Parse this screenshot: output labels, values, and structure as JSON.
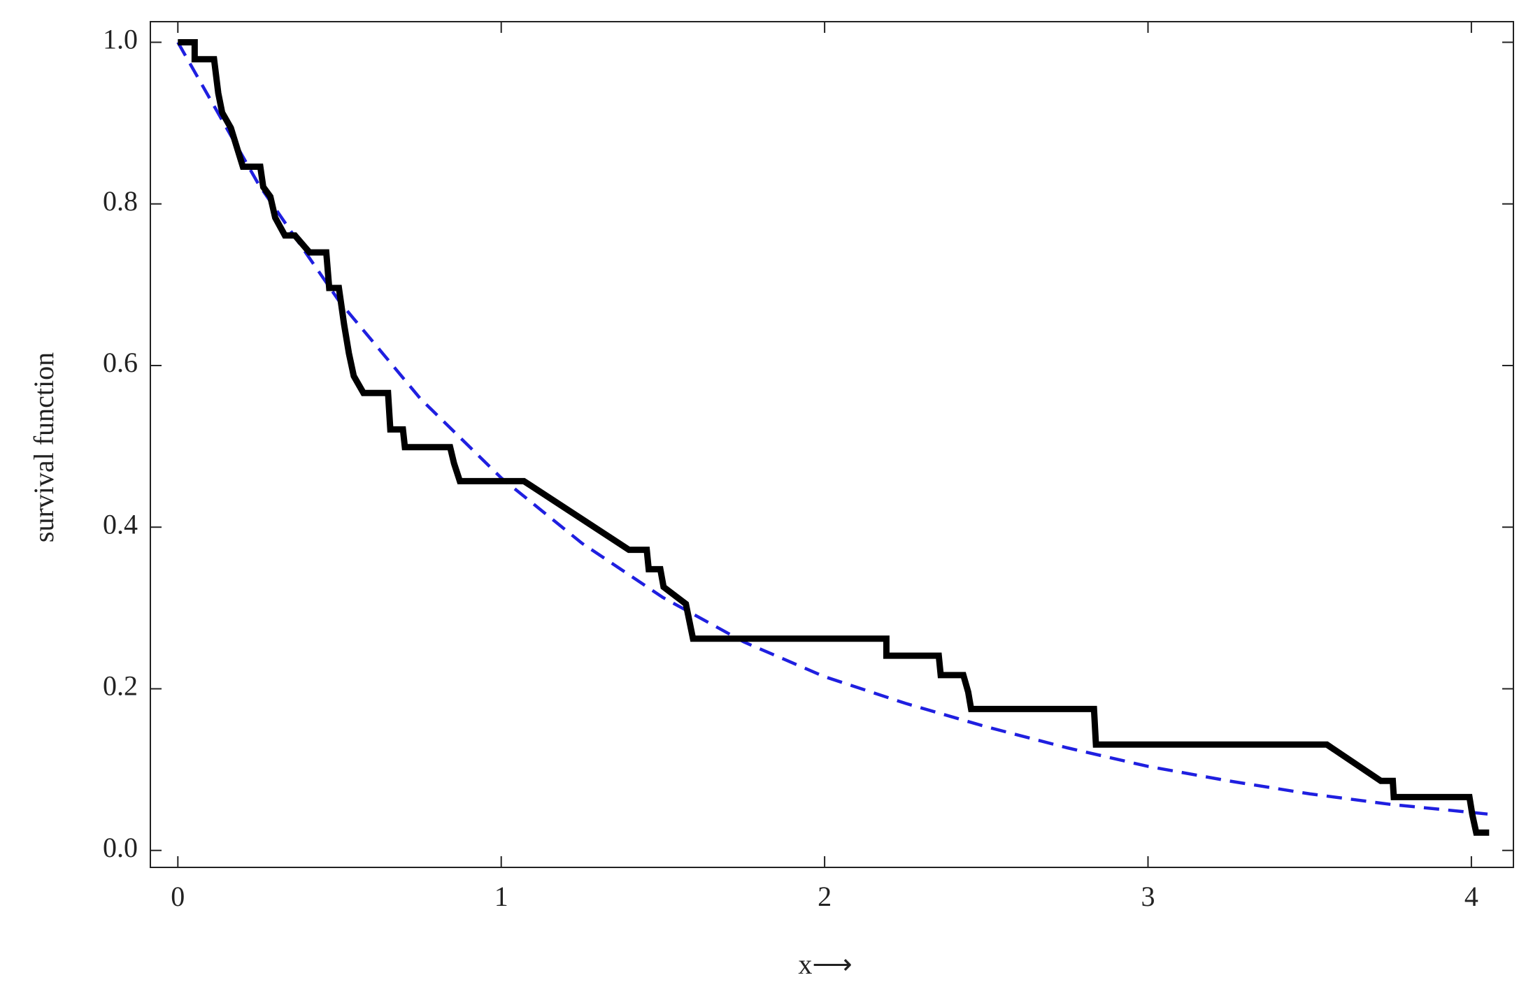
{
  "chart_data": {
    "type": "line",
    "xlabel": "x⟶",
    "ylabel": "survival function",
    "xlim": [
      -0.085,
      4.13
    ],
    "ylim": [
      -0.021,
      1.0255
    ],
    "xticks": [
      0,
      1,
      2,
      3,
      4
    ],
    "yticks": [
      {
        "value": 0,
        "label": "0.0"
      },
      {
        "value": 0.2,
        "label": "0.2"
      },
      {
        "value": 0.4,
        "label": "0.4"
      },
      {
        "value": 0.6,
        "label": "0.6"
      },
      {
        "value": 0.8,
        "label": "0.8"
      },
      {
        "value": 1,
        "label": "1.0"
      }
    ],
    "grid": false,
    "series": [
      {
        "color": "#000000",
        "dashed": false,
        "x": [
          0,
          0.052,
          0.052,
          0.112,
          0.125,
          0.137,
          0.164,
          0.201,
          0.255,
          0.264,
          0.286,
          0.301,
          0.331,
          0.362,
          0.407,
          0.459,
          0.468,
          0.498,
          0.514,
          0.529,
          0.544,
          0.574,
          0.65,
          0.657,
          0.696,
          0.702,
          0.842,
          0.854,
          0.872,
          1.07,
          1.395,
          1.45,
          1.456,
          1.492,
          1.502,
          1.571,
          1.593,
          2.191,
          2.191,
          2.353,
          2.359,
          2.429,
          2.444,
          2.453,
          2.833,
          2.839,
          3.553,
          3.72,
          3.757,
          3.76,
          3.994,
          4.003,
          4.015,
          4.055
        ],
        "values": [
          1,
          1,
          0.979,
          0.979,
          0.937,
          0.913,
          0.894,
          0.846,
          0.846,
          0.821,
          0.809,
          0.783,
          0.761,
          0.761,
          0.74,
          0.74,
          0.696,
          0.696,
          0.651,
          0.615,
          0.587,
          0.566,
          0.566,
          0.521,
          0.521,
          0.499,
          0.499,
          0.479,
          0.457,
          0.457,
          0.372,
          0.372,
          0.348,
          0.348,
          0.326,
          0.305,
          0.262,
          0.262,
          0.241,
          0.241,
          0.217,
          0.217,
          0.196,
          0.175,
          0.175,
          0.131,
          0.131,
          0.086,
          0.086,
          0.066,
          0.066,
          0.044,
          0.022,
          0.022
        ]
      },
      {
        "color": "#1f1fe0",
        "dashed": true,
        "x": [
          0,
          0.25,
          0.5,
          0.75,
          1,
          1.25,
          1.5,
          1.75,
          2,
          2.25,
          2.5,
          2.75,
          3,
          3.25,
          3.5,
          3.75,
          4,
          4.05
        ],
        "values": [
          1,
          0.824,
          0.679,
          0.559,
          0.461,
          0.38,
          0.313,
          0.258,
          0.215,
          0.182,
          0.153,
          0.127,
          0.104,
          0.086,
          0.07,
          0.057,
          0.047,
          0.045
        ]
      }
    ]
  }
}
